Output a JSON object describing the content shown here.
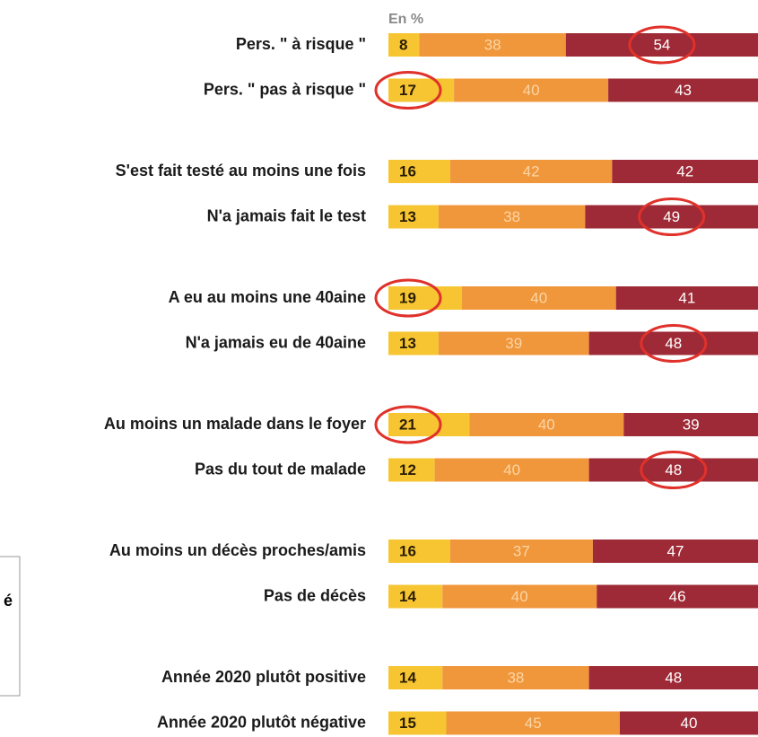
{
  "chart_data": {
    "type": "bar",
    "orientation": "horizontal",
    "stacked": true,
    "subtitle": "En %",
    "annotation": "é",
    "categories": [
      "Pers. \" à risque \"",
      "Pers. \" pas à risque \"",
      "S'est fait testé au moins une fois",
      "N'a jamais fait le test",
      "A eu au moins une 40aine",
      "N'a jamais eu de 40aine",
      "Au moins un malade dans le foyer",
      "Pas du tout de malade",
      "Au moins un décès proches/amis",
      "Pas de décès",
      "Année 2020 plutôt positive",
      "Année 2020 plutôt négative"
    ],
    "series": [
      {
        "color": "#f6c531",
        "label_color": "#2b1d05",
        "values": [
          8,
          17,
          16,
          13,
          19,
          13,
          21,
          12,
          16,
          14,
          14,
          15
        ]
      },
      {
        "color": "#f0963b",
        "label_color": "#fbd6a6",
        "values": [
          38,
          40,
          42,
          38,
          40,
          39,
          40,
          40,
          37,
          40,
          38,
          45
        ]
      },
      {
        "color": "#9d2a36",
        "label_color": "#ffffff",
        "values": [
          54,
          43,
          42,
          49,
          41,
          48,
          39,
          48,
          47,
          46,
          48,
          40
        ]
      }
    ],
    "highlight": [
      {
        "series": 2,
        "index": 0
      },
      {
        "series": 0,
        "index": 1
      },
      {
        "series": 2,
        "index": 3
      },
      {
        "series": 0,
        "index": 4
      },
      {
        "series": 2,
        "index": 5
      },
      {
        "series": 0,
        "index": 6
      },
      {
        "series": 2,
        "index": 7
      }
    ],
    "highlight_color": "#e0312b",
    "xlim": [
      0,
      100
    ]
  }
}
